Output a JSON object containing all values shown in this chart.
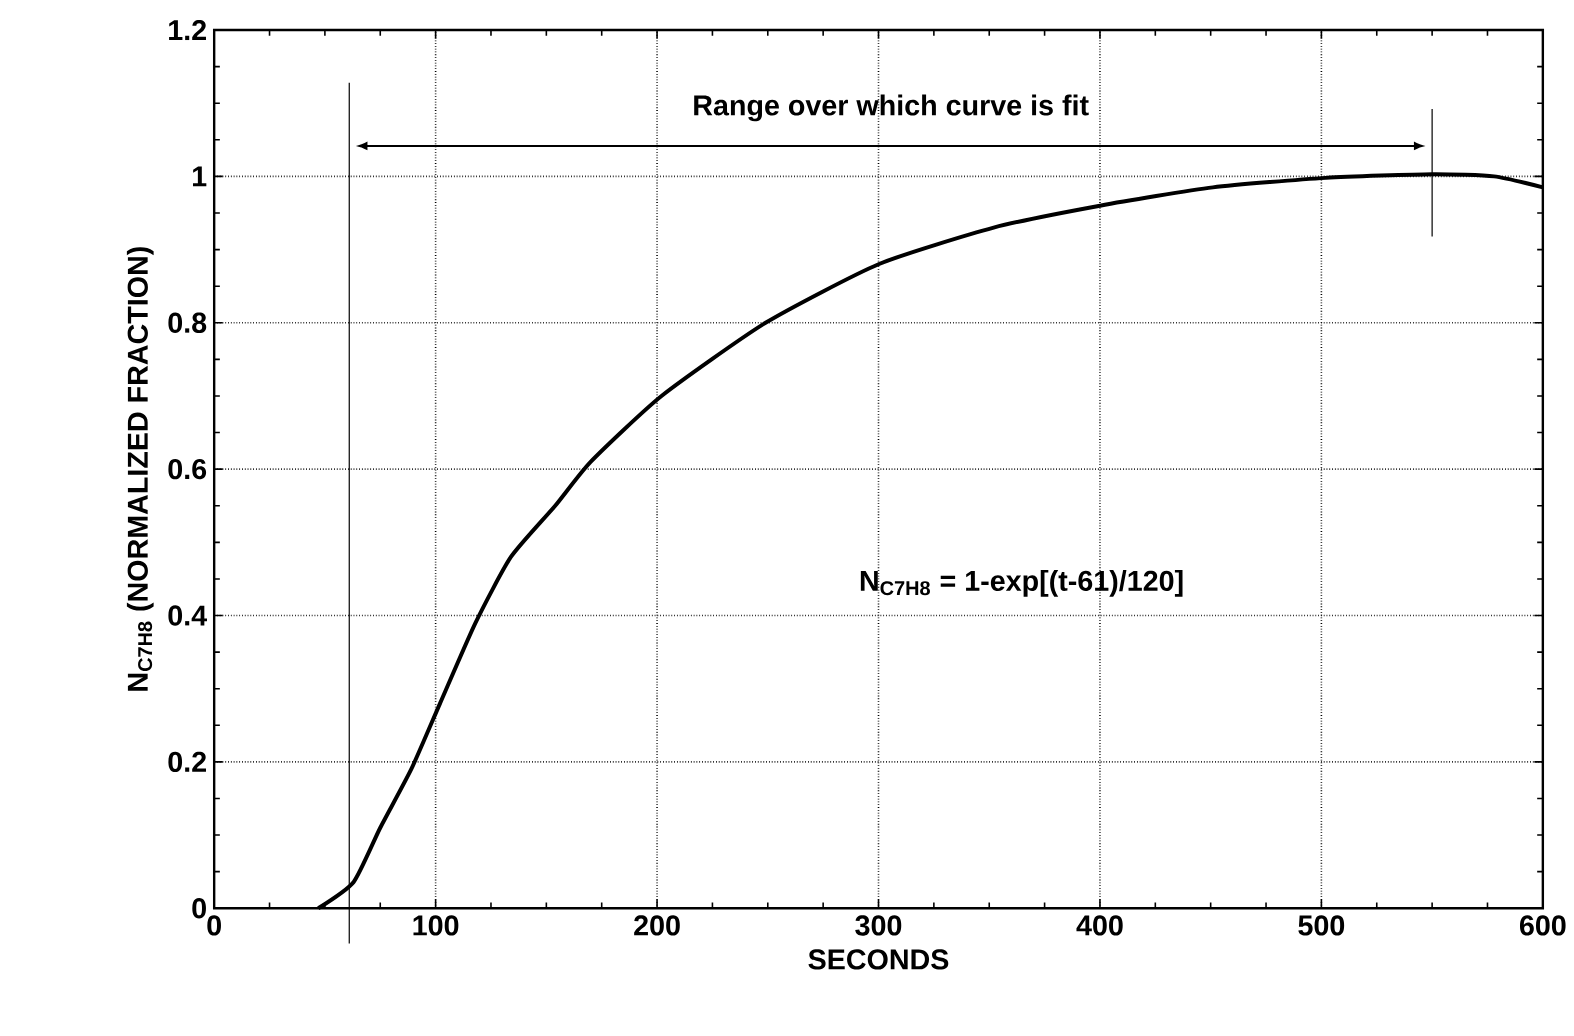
{
  "chart_data": {
    "type": "line",
    "xlabel": "SECONDS",
    "ylabel": "N$_{C7H8}$ (NORMALIZED FRACTION)",
    "annotations": [
      "Range over which curve is fit",
      "N$_{C7H8}$ = 1-exp[(t-61)/120]"
    ],
    "x": [
      47,
      63,
      75,
      89,
      102,
      118,
      134,
      154,
      170,
      202,
      249,
      300,
      352,
      400,
      451,
      502,
      550,
      578,
      600
    ],
    "series": [
      {
        "color": "#000000",
        "values": [
          0,
          0.036,
          0.11,
          0.19,
          0.28,
          0.39,
          0.48,
          0.55,
          0.61,
          0.7,
          0.8,
          0.88,
          0.93,
          0.96,
          0.985,
          0.998,
          1.003,
          1.0,
          0.985
        ]
      }
    ],
    "xlim": [
      0,
      600
    ],
    "ylim": [
      0,
      1.2
    ],
    "xticks": [
      0,
      100,
      200,
      300,
      400,
      500,
      600
    ],
    "yticks": [
      0,
      0.2,
      0.4,
      0.6,
      0.8,
      1,
      1.2
    ],
    "ref_lines": [
      {
        "axis": "x",
        "value": 61
      },
      {
        "axis": "x",
        "value": 550
      }
    ],
    "grid": true,
    "marker": "none",
    "line_style": "solid"
  }
}
